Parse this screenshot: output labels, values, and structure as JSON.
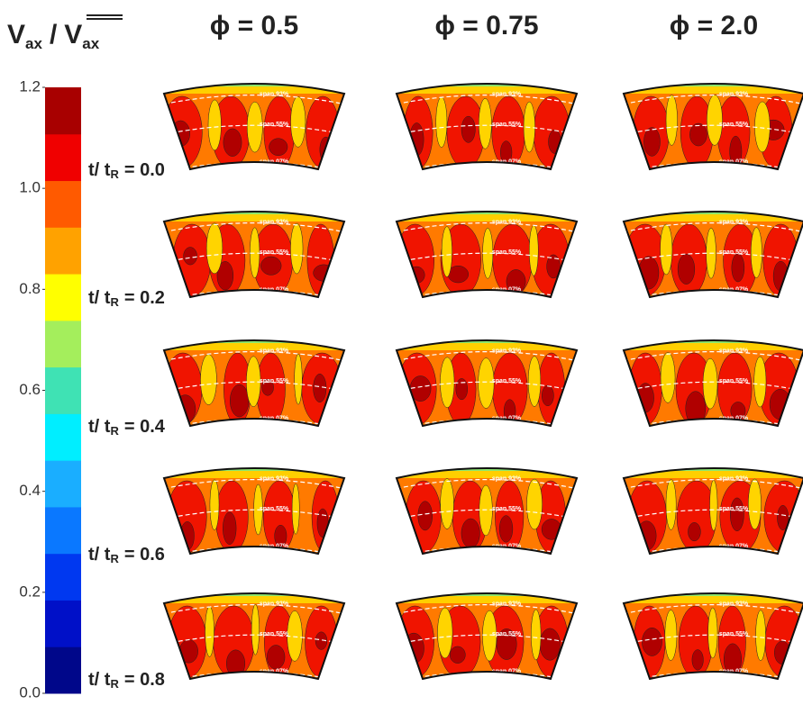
{
  "title": {
    "numerator": "V",
    "numerator_sub": "ax",
    "slash": "/",
    "denominator": "V",
    "denominator_sub": "ax"
  },
  "columns": [
    "ϕ = 0.5",
    "ϕ = 0.75",
    "ϕ = 2.0"
  ],
  "rows": [
    {
      "label": "t/ t",
      "sub": "R",
      "value": "= 0.0"
    },
    {
      "label": "t/ t",
      "sub": "R",
      "value": "= 0.2"
    },
    {
      "label": "t/ t",
      "sub": "R",
      "value": "= 0.4"
    },
    {
      "label": "t/ t",
      "sub": "R",
      "value": "= 0.6"
    },
    {
      "label": "t/ t",
      "sub": "R",
      "value": "= 0.8"
    }
  ],
  "colorbar": {
    "lim": [
      0,
      1.2
    ],
    "ticks": [
      {
        "value": 0,
        "label": "0.0"
      },
      {
        "value": 0.2,
        "label": "0.2"
      },
      {
        "value": 0.4,
        "label": "0.4"
      },
      {
        "value": 0.6,
        "label": "0.6"
      },
      {
        "value": 0.8,
        "label": "0.8"
      },
      {
        "value": 1,
        "label": "1.0"
      },
      {
        "value": 1.2,
        "label": "1.2"
      }
    ],
    "colors": [
      "#00078a",
      "#0010c8",
      "#0038f0",
      "#0a78ff",
      "#1aaeff",
      "#00eeff",
      "#3fe2b4",
      "#a4ee5c",
      "#ffff00",
      "#ffa200",
      "#ff5a00",
      "#f00000",
      "#a80000"
    ]
  },
  "span_labels": [
    "span 93%",
    "span 55%",
    "span 07%"
  ]
}
